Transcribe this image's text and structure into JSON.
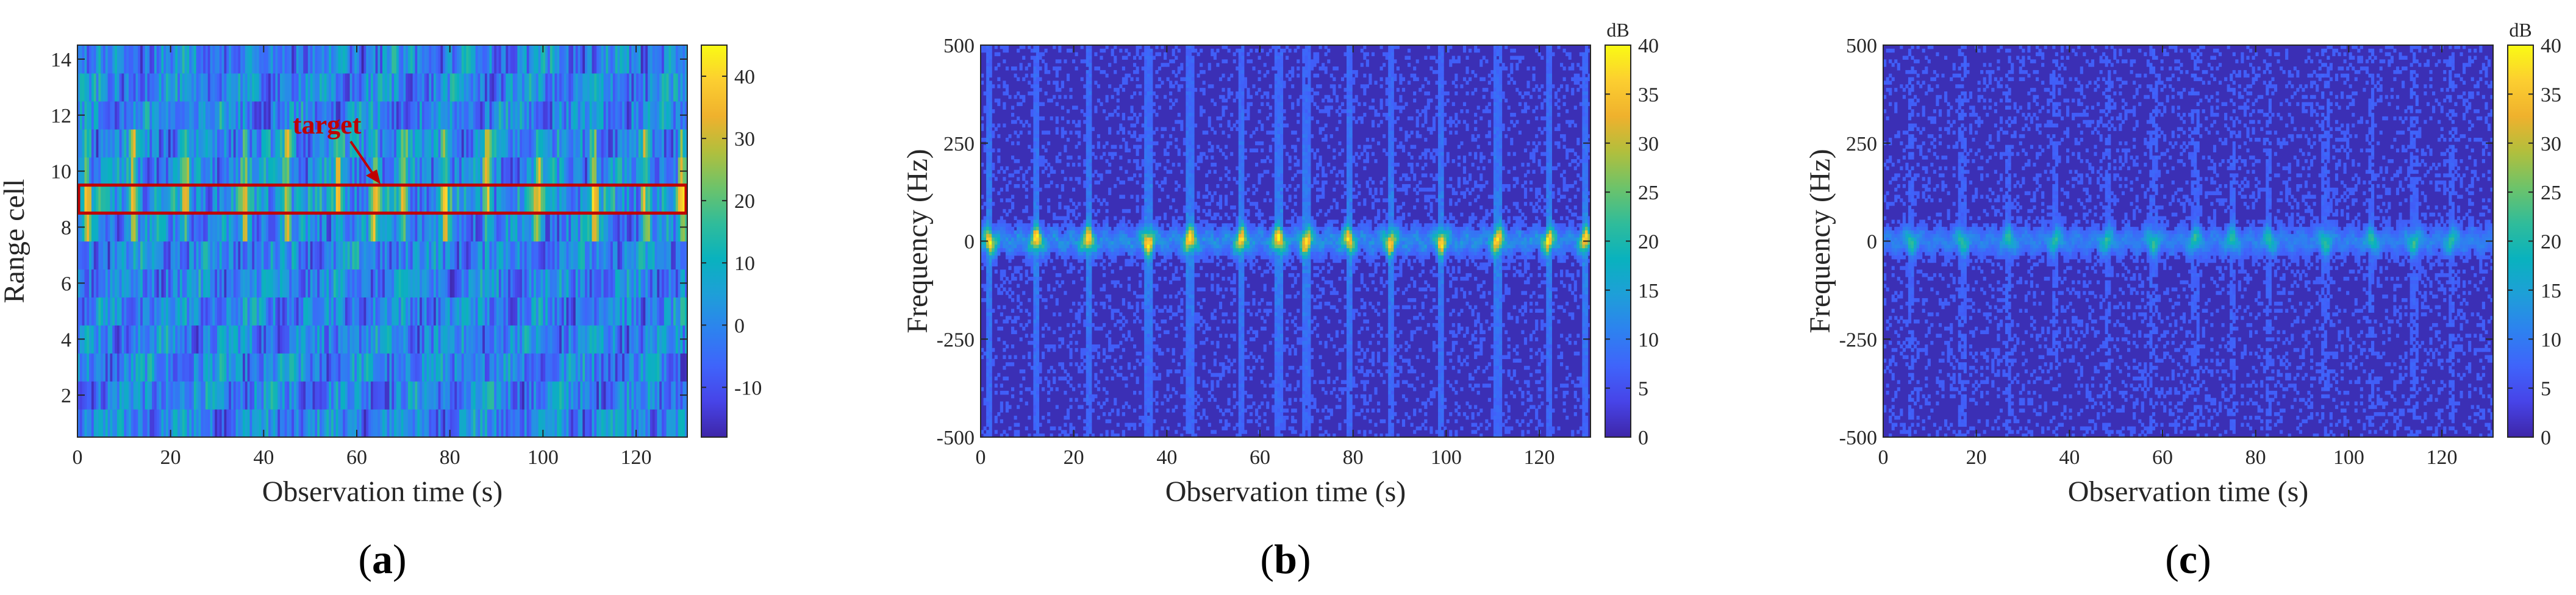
{
  "colors": {
    "parula": [
      "#3e26a8",
      "#4744e8",
      "#3f64fb",
      "#2d82ef",
      "#1e9fd8",
      "#09b2be",
      "#30bc9a",
      "#6dc36a",
      "#b1bf3d",
      "#efb12d",
      "#fcce30",
      "#f9fb14"
    ],
    "background": "#3b2fb5",
    "target_box": "#c00000"
  },
  "chart_data": [
    {
      "type": "heatmap",
      "panel_caption": {
        "open": "(",
        "letter": "a",
        "close": ")"
      },
      "xlabel": "Observation time (s)",
      "ylabel": "Range cell",
      "xlim": [
        0,
        131
      ],
      "ylim": [
        0.5,
        14.5
      ],
      "xticks": [
        "0",
        "20",
        "40",
        "60",
        "80",
        "100",
        "120"
      ],
      "yticks": [
        "2",
        "4",
        "6",
        "8",
        "10",
        "12",
        "14"
      ],
      "colorbar": {
        "range": [
          -18,
          45
        ],
        "ticks": [
          "-10",
          "0",
          "10",
          "20",
          "30",
          "40"
        ],
        "unit": ""
      },
      "annotation": {
        "text": "target",
        "range_cells": [
          8.5,
          9.5
        ]
      },
      "bright_times": [
        2,
        12,
        23,
        36,
        45,
        56,
        64,
        70,
        79,
        88,
        99,
        111,
        122,
        130
      ]
    },
    {
      "type": "heatmap",
      "panel_caption": {
        "open": "(",
        "letter": "b",
        "close": ")"
      },
      "xlabel": "Observation time (s)",
      "ylabel": "Frequency (Hz)",
      "xlim": [
        0,
        131
      ],
      "ylim": [
        -500,
        500
      ],
      "xticks": [
        "0",
        "20",
        "40",
        "60",
        "80",
        "100",
        "120"
      ],
      "yticks": [
        "-500",
        "-250",
        "0",
        "250",
        "500"
      ],
      "colorbar": {
        "range": [
          0,
          40
        ],
        "ticks": [
          "0",
          "5",
          "10",
          "15",
          "20",
          "25",
          "30",
          "35",
          "40"
        ],
        "unit": "dB"
      },
      "bright_times": [
        2,
        12,
        23,
        36,
        45,
        56,
        64,
        70,
        79,
        88,
        99,
        111,
        122,
        130
      ]
    },
    {
      "type": "heatmap",
      "panel_caption": {
        "open": "(",
        "letter": "c",
        "close": ")"
      },
      "xlabel": "Observation time (s)",
      "ylabel": "Frequency (Hz)",
      "xlim": [
        0,
        131
      ],
      "ylim": [
        -500,
        500
      ],
      "xticks": [
        "0",
        "20",
        "40",
        "60",
        "80",
        "100",
        "120"
      ],
      "yticks": [
        "-500",
        "-250",
        "0",
        "250",
        "500"
      ],
      "colorbar": {
        "range": [
          0,
          40
        ],
        "ticks": [
          "0",
          "5",
          "10",
          "15",
          "20",
          "25",
          "30",
          "35",
          "40"
        ],
        "unit": "dB"
      },
      "bright_times": [
        6,
        17,
        27,
        37,
        48,
        58,
        67,
        75,
        83,
        95,
        105,
        114,
        122
      ]
    }
  ]
}
